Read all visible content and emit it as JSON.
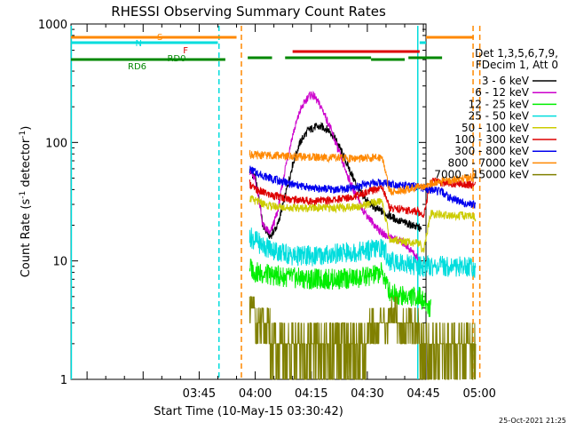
{
  "chart_data": {
    "type": "line",
    "title": "RHESSI Observing Summary Count Rates",
    "xlabel": "Start Time (10-May-15 03:30:42)",
    "ylabel_main": "Count Rate (s",
    "ylabel_sup1": "-1",
    "ylabel_mid": " detector",
    "ylabel_sup2": "-1",
    "ylabel_end": ")",
    "y_scale": "log",
    "ylim": [
      1,
      1000
    ],
    "x_range_minutes_from_0330": [
      10.7,
      105.7
    ],
    "x_ticks": [
      {
        "label": "03:45",
        "minute": 45
      },
      {
        "label": "04:00",
        "minute": 60
      },
      {
        "label": "04:15",
        "minute": 75
      },
      {
        "label": "04:30",
        "minute": 90
      },
      {
        "label": "04:45",
        "minute": 105
      },
      {
        "label": "05:00",
        "minute": 120
      }
    ],
    "y_ticks": [
      {
        "label": "1",
        "value": 1
      },
      {
        "label": "10",
        "value": 10
      },
      {
        "label": "100",
        "value": 100
      },
      {
        "label": "1000",
        "value": 1000
      }
    ],
    "footer_date": "25-Oct-2021 21:25",
    "legend_header": [
      "Det 1,3,5,6,7,9,",
      "FDecim 1, Att 0"
    ],
    "legend_placement": "right",
    "series": [
      {
        "name": "3 - 6 keV",
        "color": "#000000",
        "points": [
          [
            58.5,
            58
          ],
          [
            60,
            50
          ],
          [
            61,
            35
          ],
          [
            62,
            20
          ],
          [
            64,
            16
          ],
          [
            66,
            20
          ],
          [
            68,
            35
          ],
          [
            70,
            65
          ],
          [
            72,
            100
          ],
          [
            74,
            125
          ],
          [
            76,
            135
          ],
          [
            78,
            135
          ],
          [
            80,
            125
          ],
          [
            82,
            100
          ],
          [
            84,
            72
          ],
          [
            86,
            52
          ],
          [
            88,
            38
          ],
          [
            90,
            32
          ],
          [
            92,
            28
          ],
          [
            94,
            26
          ],
          [
            96,
            24
          ],
          [
            98,
            22
          ],
          [
            100,
            21
          ],
          [
            102,
            20
          ],
          [
            104,
            19
          ],
          [
            104.5,
            18
          ]
        ]
      },
      {
        "name": "6 - 12 keV",
        "color": "#cc00cc",
        "points": [
          [
            58.5,
            58
          ],
          [
            60,
            48
          ],
          [
            61,
            33
          ],
          [
            62,
            20
          ],
          [
            64,
            17
          ],
          [
            66,
            26
          ],
          [
            68,
            60
          ],
          [
            70,
            115
          ],
          [
            72,
            185
          ],
          [
            74,
            240
          ],
          [
            75,
            255
          ],
          [
            76,
            240
          ],
          [
            78,
            190
          ],
          [
            80,
            135
          ],
          [
            82,
            90
          ],
          [
            84,
            60
          ],
          [
            86,
            42
          ],
          [
            88,
            30
          ],
          [
            90,
            24
          ],
          [
            92,
            20
          ],
          [
            94,
            17
          ],
          [
            96,
            16
          ],
          [
            98,
            15
          ],
          [
            100,
            14
          ],
          [
            102,
            12
          ],
          [
            104,
            10
          ],
          [
            104.5,
            9
          ]
        ]
      },
      {
        "name": "12 - 25 keV",
        "color": "#00ee00",
        "points": [
          [
            58.5,
            9
          ],
          [
            60,
            8
          ],
          [
            64,
            7.6
          ],
          [
            70,
            7.2
          ],
          [
            76,
            7
          ],
          [
            82,
            7
          ],
          [
            88,
            7.2
          ],
          [
            92,
            7.6
          ],
          [
            94,
            8
          ],
          [
            96,
            5.5
          ],
          [
            100,
            5
          ],
          [
            104,
            5
          ],
          [
            105,
            4.5
          ],
          [
            107,
            4
          ]
        ]
      },
      {
        "name": "25 - 50 keV",
        "color": "#00dddd",
        "points": [
          [
            58.5,
            16
          ],
          [
            60,
            15
          ],
          [
            62,
            13.5
          ],
          [
            66,
            12
          ],
          [
            70,
            11
          ],
          [
            76,
            11
          ],
          [
            82,
            11.5
          ],
          [
            88,
            12
          ],
          [
            92,
            12.5
          ],
          [
            94,
            13
          ],
          [
            96,
            10
          ],
          [
            100,
            9.5
          ],
          [
            104,
            9
          ],
          [
            108,
            9
          ],
          [
            114,
            9
          ],
          [
            118,
            9
          ],
          [
            119,
            8.8
          ]
        ]
      },
      {
        "name": "50 - 100 keV",
        "color": "#cccc00",
        "points": [
          [
            58.5,
            34
          ],
          [
            60,
            32
          ],
          [
            64,
            29
          ],
          [
            70,
            28
          ],
          [
            76,
            28
          ],
          [
            82,
            28
          ],
          [
            88,
            29
          ],
          [
            94,
            32
          ],
          [
            96,
            15
          ],
          [
            98,
            15
          ],
          [
            100,
            14.5
          ],
          [
            104,
            14
          ],
          [
            105,
            12
          ],
          [
            107,
            25
          ],
          [
            112,
            24
          ],
          [
            118,
            24
          ],
          [
            119,
            23
          ]
        ]
      },
      {
        "name": "100 - 300 keV",
        "color": "#dd0000",
        "points": [
          [
            58.5,
            45
          ],
          [
            60,
            40
          ],
          [
            64,
            36
          ],
          [
            70,
            33
          ],
          [
            76,
            32
          ],
          [
            82,
            33
          ],
          [
            88,
            36
          ],
          [
            92,
            40
          ],
          [
            94,
            42
          ],
          [
            96,
            28
          ],
          [
            100,
            27
          ],
          [
            104,
            26
          ],
          [
            105,
            24
          ],
          [
            107,
            47
          ],
          [
            112,
            45
          ],
          [
            118,
            44
          ],
          [
            119,
            43
          ]
        ]
      },
      {
        "name": "300 - 800 keV",
        "color": "#0000ee",
        "points": [
          [
            58.5,
            60
          ],
          [
            60,
            56
          ],
          [
            64,
            50
          ],
          [
            70,
            44
          ],
          [
            76,
            41
          ],
          [
            82,
            40
          ],
          [
            86,
            41
          ],
          [
            90,
            45
          ],
          [
            94,
            46
          ],
          [
            96,
            45
          ],
          [
            100,
            43
          ],
          [
            104,
            42
          ],
          [
            107,
            40
          ],
          [
            110,
            38
          ],
          [
            112,
            34
          ],
          [
            116,
            31
          ],
          [
            118,
            30
          ],
          [
            119,
            30
          ]
        ]
      },
      {
        "name": "800 - 7000 keV",
        "color": "#ff8800",
        "points": [
          [
            58.5,
            80
          ],
          [
            60,
            78
          ],
          [
            64,
            78
          ],
          [
            70,
            76
          ],
          [
            76,
            75
          ],
          [
            82,
            74
          ],
          [
            88,
            73
          ],
          [
            92,
            74
          ],
          [
            94,
            76
          ],
          [
            96,
            38
          ],
          [
            100,
            40
          ],
          [
            104,
            42
          ],
          [
            107,
            45
          ],
          [
            112,
            48
          ],
          [
            118,
            51
          ],
          [
            119,
            52
          ]
        ]
      },
      {
        "name": "7000 - 15000 keV",
        "color": "#808000",
        "points": [
          [
            58.5,
            4.5
          ],
          [
            60,
            3.5
          ],
          [
            62,
            3
          ],
          [
            64,
            2.5
          ],
          [
            66,
            2
          ],
          [
            70,
            2
          ],
          [
            74,
            2
          ],
          [
            78,
            2
          ],
          [
            82,
            2
          ],
          [
            86,
            2
          ],
          [
            88,
            2.2
          ],
          [
            90,
            2.5
          ],
          [
            92,
            2.8
          ],
          [
            94,
            3.2
          ],
          [
            96,
            3.5
          ],
          [
            98,
            3.5
          ],
          [
            100,
            3.2
          ],
          [
            102,
            2.8
          ],
          [
            104,
            2.5
          ],
          [
            106,
            2.2
          ],
          [
            108,
            2
          ],
          [
            112,
            2
          ],
          [
            118,
            2
          ],
          [
            119,
            2
          ]
        ]
      }
    ],
    "bands": [
      {
        "name": "S",
        "color": "#ff8800",
        "segments": [
          [
            10.7,
            55
          ],
          [
            118.5,
            120.5
          ]
        ]
      },
      {
        "name": "N",
        "color": "#00dddd",
        "segments": [
          [
            10.7,
            50
          ],
          [
            104,
            118.5
          ]
        ]
      },
      {
        "name": "F",
        "color": "#dd0000",
        "segments": [
          [
            70,
            104
          ]
        ]
      },
      {
        "name": "RD0",
        "color": "#008800",
        "segments": [
          [
            58,
            64.5
          ],
          [
            68,
            91
          ],
          [
            101,
            108
          ],
          [
            110,
            120.5
          ]
        ]
      },
      {
        "name": "RD6",
        "color": "#008800",
        "segments": [
          [
            10.7,
            52
          ],
          [
            91,
            100
          ]
        ]
      }
    ],
    "vlines": [
      {
        "minute": 10.8,
        "color": "#00dddd",
        "dashed": false
      },
      {
        "minute": 50.3,
        "color": "#00dddd",
        "dashed": true
      },
      {
        "minute": 56.3,
        "color": "#ff8800",
        "dashed": true
      },
      {
        "minute": 103.5,
        "color": "#00dddd",
        "dashed": false
      },
      {
        "minute": 118.3,
        "color": "#ff8800",
        "dashed": true
      },
      {
        "minute": 120.1,
        "color": "#ff8800",
        "dashed": true
      }
    ]
  }
}
